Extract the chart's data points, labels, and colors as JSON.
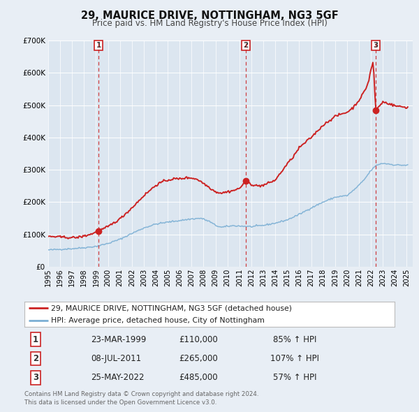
{
  "title": "29, MAURICE DRIVE, NOTTINGHAM, NG3 5GF",
  "subtitle": "Price paid vs. HM Land Registry's House Price Index (HPI)",
  "bg_color": "#e8eef5",
  "plot_bg_color": "#dce6f0",
  "grid_color": "#ffffff",
  "hpi_color": "#7bafd4",
  "price_color": "#cc2222",
  "ylim": [
    0,
    700000
  ],
  "yticks": [
    0,
    100000,
    200000,
    300000,
    400000,
    500000,
    600000,
    700000
  ],
  "ytick_labels": [
    "£0",
    "£100K",
    "£200K",
    "£300K",
    "£400K",
    "£500K",
    "£600K",
    "£700K"
  ],
  "legend_items": [
    {
      "label": "29, MAURICE DRIVE, NOTTINGHAM, NG3 5GF (detached house)",
      "color": "#cc2222"
    },
    {
      "label": "HPI: Average price, detached house, City of Nottingham",
      "color": "#7bafd4"
    }
  ],
  "sales": [
    {
      "num": 1,
      "date": "23-MAR-1999",
      "price": "£110,000",
      "pct": "85% ↑ HPI"
    },
    {
      "num": 2,
      "date": "08-JUL-2011",
      "price": "£265,000",
      "pct": "107% ↑ HPI"
    },
    {
      "num": 3,
      "date": "25-MAY-2022",
      "price": "£485,000",
      "pct": "57% ↑ HPI"
    }
  ],
  "sale_dates_decimal": [
    1999.23,
    2011.52,
    2022.4
  ],
  "sale_prices": [
    110000,
    265000,
    485000
  ],
  "footer": "Contains HM Land Registry data © Crown copyright and database right 2024.\nThis data is licensed under the Open Government Licence v3.0."
}
